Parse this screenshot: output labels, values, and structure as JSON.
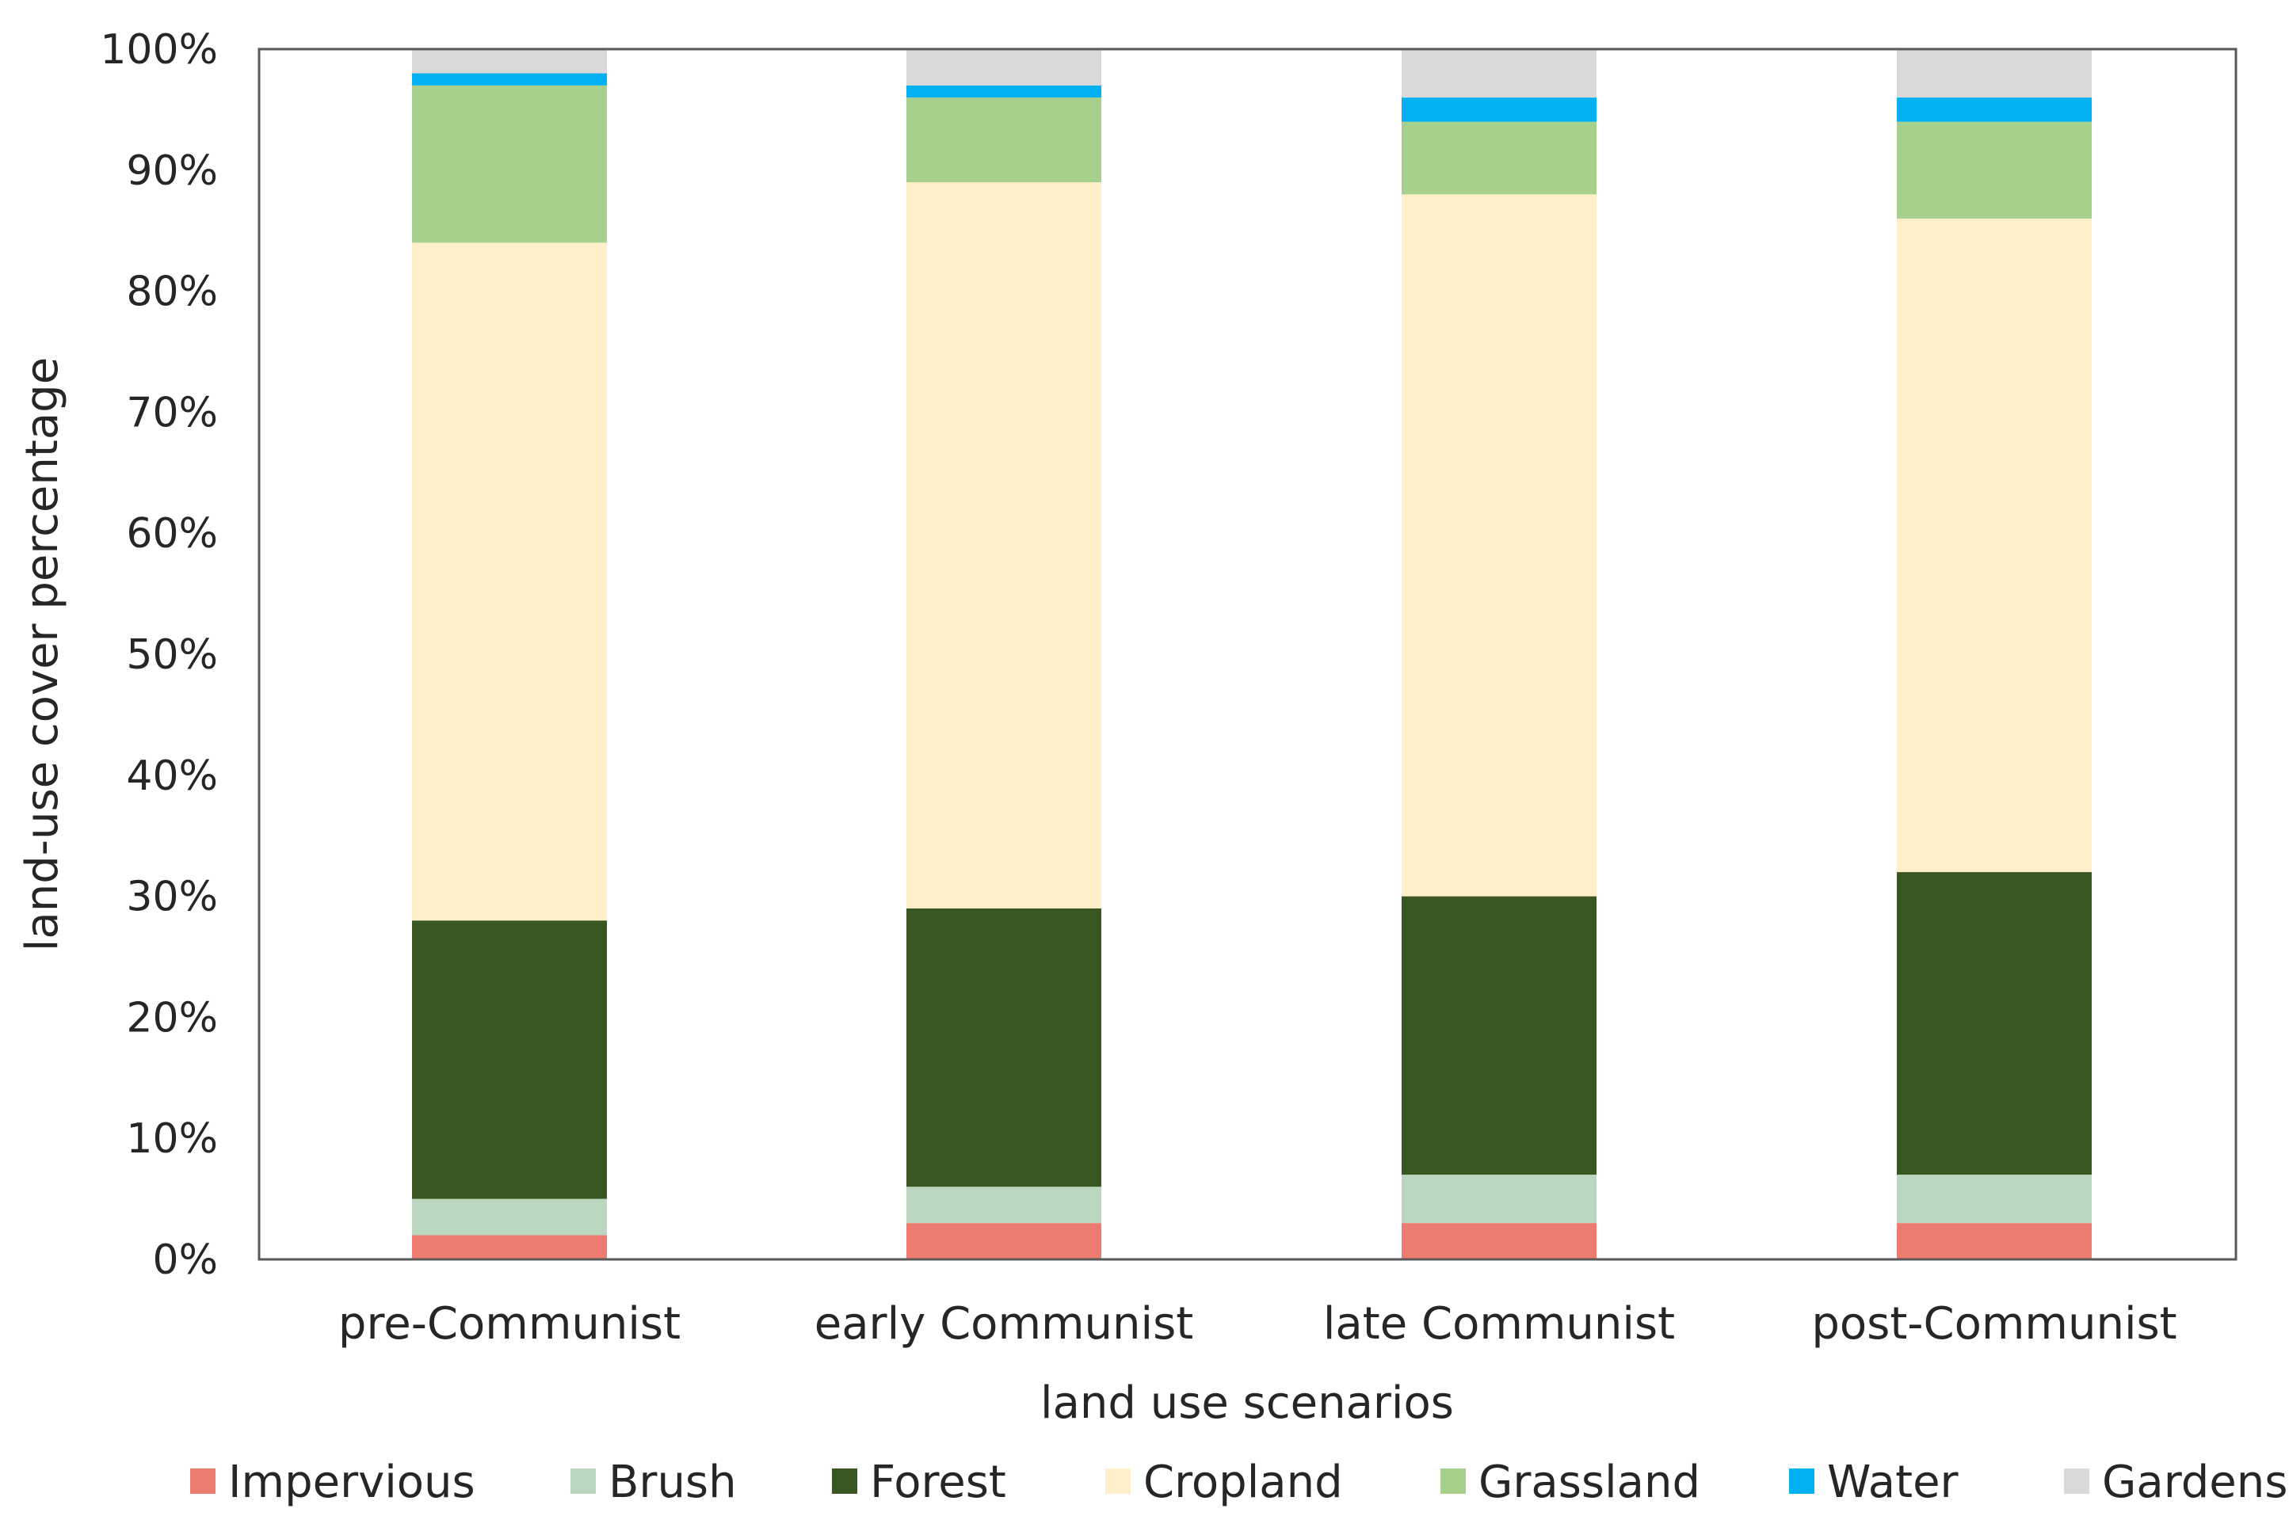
{
  "chart_data": {
    "type": "bar",
    "stacked": true,
    "categories": [
      "pre-Communist",
      "early Communist",
      "late Communist",
      "post-Communist"
    ],
    "series": [
      {
        "name": "Impervious",
        "color": "#EE7B6F",
        "values": [
          2,
          3,
          3,
          3
        ]
      },
      {
        "name": "Brush",
        "color": "#BCD7C0",
        "values": [
          3,
          3,
          4,
          4
        ]
      },
      {
        "name": "Forest",
        "color": "#3A5723",
        "values": [
          23,
          23,
          23,
          25
        ]
      },
      {
        "name": "Cropland",
        "color": "#FFEECA",
        "values": [
          56,
          60,
          58,
          54
        ]
      },
      {
        "name": "Grassland",
        "color": "#A8D08D",
        "values": [
          13,
          7,
          6,
          8
        ]
      },
      {
        "name": "Water",
        "color": "#00B0F0",
        "values": [
          1,
          1,
          2,
          2
        ]
      },
      {
        "name": "Gardens",
        "color": "#D9D9D9",
        "values": [
          2,
          3,
          4,
          4
        ]
      }
    ],
    "yticks": [
      "0%",
      "10%",
      "20%",
      "30%",
      "40%",
      "50%",
      "60%",
      "70%",
      "80%",
      "90%",
      "100%"
    ],
    "ylim": [
      0,
      100
    ],
    "xlabel": "land use scenarios",
    "ylabel": "land-use cover percentage",
    "title": "",
    "legend_position": "bottom",
    "grid": false
  }
}
